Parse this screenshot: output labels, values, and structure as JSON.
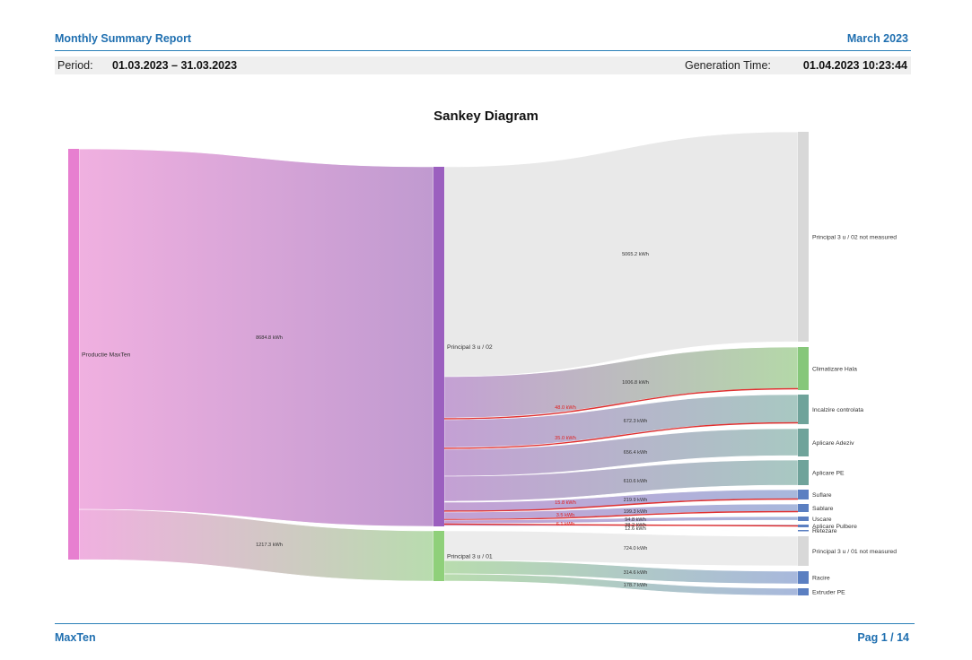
{
  "header": {
    "title": "Monthly Summary Report",
    "month": "March 2023"
  },
  "meta": {
    "period_label": "Period:",
    "period_value": "01.03.2023 – 31.03.2023",
    "generation_label": "Generation Time:",
    "generation_value": "01.04.2023 10:23:44"
  },
  "chart_title": "Sankey Diagram",
  "footer": {
    "brand": "MaxTen",
    "page": "Pag 1 / 14"
  },
  "colors": {
    "source": "#e77fd0",
    "p02": "#9b5fbf",
    "p01": "#8fd07a",
    "grey_node": "#d8d8d8",
    "green_node": "#86c77a",
    "teal_node": "#6fa39a",
    "blue_node": "#5b7fc1",
    "highlight": "#e03030"
  },
  "chart_data": {
    "type": "sankey",
    "unit": "kWh",
    "nodes": [
      "Productie MaxTen",
      "Principal 3 u / 02",
      "Principal 3 u / 01",
      "Principal 3 u / 02 not measured",
      "Climatizare Hala",
      "Incalzire controlata",
      "Aplicare Adeziv",
      "Aplicare PE",
      "Suflare",
      "Sablare",
      "Uscare",
      "Aplicare Pulbere",
      "Retezare",
      "Principal 3 u / 01 not measured",
      "Racire",
      "Extruder PE"
    ],
    "links": [
      {
        "source": "Productie MaxTen",
        "target": "Principal 3 u / 02",
        "value": 8684.8,
        "label": "8684.8 kWh"
      },
      {
        "source": "Productie MaxTen",
        "target": "Principal 3 u / 01",
        "value": 1217.3,
        "label": "1217.3 kWh"
      },
      {
        "source": "Principal 3 u / 02",
        "target": "Principal 3 u / 02 not measured",
        "value": 5065.2,
        "label": "5065.2 kWh"
      },
      {
        "source": "Principal 3 u / 02",
        "target": "Climatizare Hala",
        "value": 1006.8,
        "label": "1006.8 kWh"
      },
      {
        "source": "Principal 3 u / 02",
        "target": "Climatizare Hala",
        "value": 48.0,
        "label": "48.0 kWh",
        "highlight": true
      },
      {
        "source": "Principal 3 u / 02",
        "target": "Incalzire controlata",
        "value": 672.3,
        "label": "672.3 kWh"
      },
      {
        "source": "Principal 3 u / 02",
        "target": "Incalzire controlata",
        "value": 35.0,
        "label": "35.0 kWh",
        "highlight": true
      },
      {
        "source": "Principal 3 u / 02",
        "target": "Aplicare Adeziv",
        "value": 656.4,
        "label": "656.4 kWh"
      },
      {
        "source": "Principal 3 u / 02",
        "target": "Aplicare PE",
        "value": 610.6,
        "label": "610.6 kWh"
      },
      {
        "source": "Principal 3 u / 02",
        "target": "Suflare",
        "value": 219.9,
        "label": "219.9 kWh"
      },
      {
        "source": "Principal 3 u / 02",
        "target": "Suflare",
        "value": 15.8,
        "label": "15.8 kWh",
        "highlight": true
      },
      {
        "source": "Principal 3 u / 02",
        "target": "Sablare",
        "value": 199.3,
        "label": "199.3 kWh"
      },
      {
        "source": "Principal 3 u / 02",
        "target": "Sablare",
        "value": 3.5,
        "label": "3.5 kWh",
        "highlight": true
      },
      {
        "source": "Principal 3 u / 02",
        "target": "Uscare",
        "value": 94.8,
        "label": "94.8 kWh"
      },
      {
        "source": "Principal 3 u / 02",
        "target": "Aplicare Pulbere",
        "value": 38.2,
        "label": "38.2 kWh"
      },
      {
        "source": "Principal 3 u / 02",
        "target": "Aplicare Pulbere",
        "value": 6.1,
        "label": "6.1 kWh",
        "highlight": true
      },
      {
        "source": "Principal 3 u / 02",
        "target": "Retezare",
        "value": 12.6,
        "label": "12.6 kWh"
      },
      {
        "source": "Principal 3 u / 01",
        "target": "Principal 3 u / 01 not measured",
        "value": 724.0,
        "label": "724.0 kWh"
      },
      {
        "source": "Principal 3 u / 01",
        "target": "Racire",
        "value": 314.6,
        "label": "314.6 kWh"
      },
      {
        "source": "Principal 3 u / 01",
        "target": "Extruder PE",
        "value": 178.7,
        "label": "178.7 kWh"
      }
    ]
  }
}
